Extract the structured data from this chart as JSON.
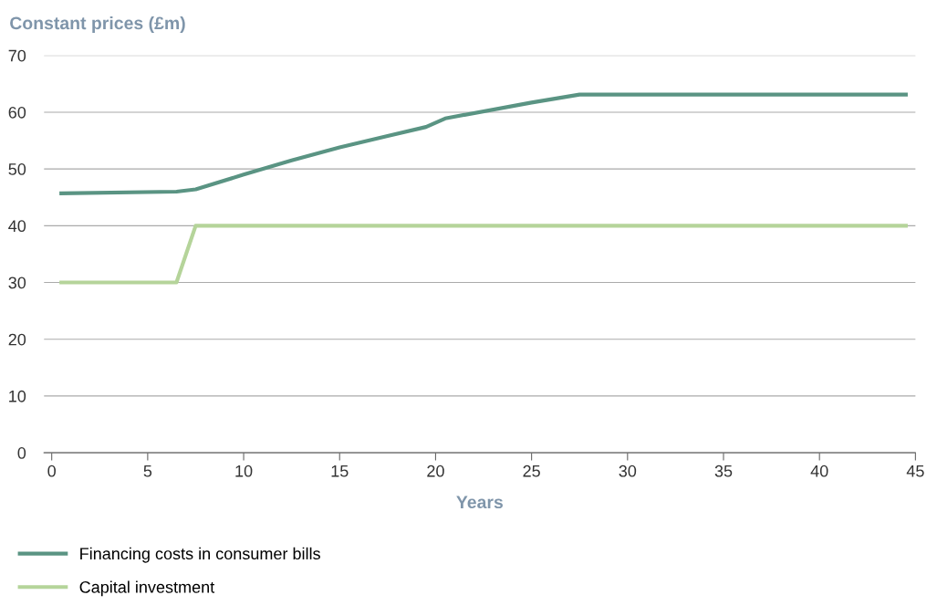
{
  "chart_data": {
    "type": "line",
    "ylabel": "Constant prices (£m)",
    "xlabel": "Years",
    "xlim": [
      -0.4,
      45
    ],
    "ylim": [
      0,
      70
    ],
    "xticks": [
      0,
      5,
      10,
      15,
      20,
      25,
      30,
      35,
      40,
      45
    ],
    "yticks": [
      0,
      10,
      20,
      30,
      40,
      50,
      60,
      70
    ],
    "grid": "y",
    "legend": "bottom",
    "line_style": "solid",
    "marker": "none",
    "series": [
      {
        "name": "Financing costs in consumer bills",
        "color": "#5a9483",
        "x": [
          0.5,
          6.5,
          7.5,
          10,
          12.5,
          15,
          17.5,
          19.5,
          20.5,
          25,
          27.5,
          44.5
        ],
        "values": [
          45.7,
          46.0,
          46.4,
          49.0,
          51.5,
          53.8,
          55.8,
          57.4,
          58.9,
          61.7,
          63.1,
          63.1
        ]
      },
      {
        "name": "Capital investment",
        "color": "#b5d49a",
        "x": [
          0.5,
          6.5,
          7.5,
          44.5
        ],
        "values": [
          30,
          30,
          40,
          40
        ]
      }
    ]
  }
}
